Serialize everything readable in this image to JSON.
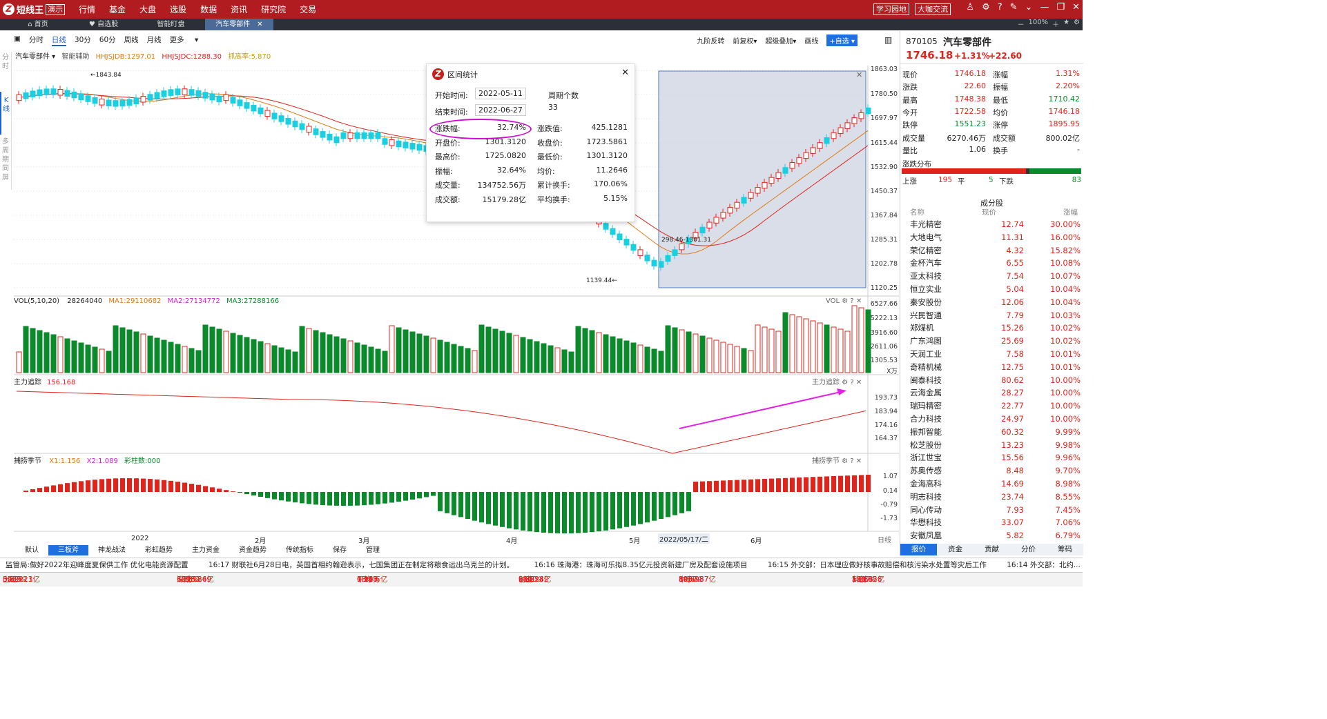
{
  "app": {
    "name": "短线王",
    "badge": "演示",
    "menu": [
      "行情",
      "基金",
      "大盘",
      "选股",
      "数据",
      "资讯",
      "研究院",
      "交易"
    ],
    "btn_learn": "学习园地",
    "btn_chat": "大咖交流",
    "zoom": "100%"
  },
  "tabs": [
    "首页",
    "自选股",
    "智能盯盘",
    "汽车零部件"
  ],
  "chart": {
    "sidebar": [
      "分时",
      "K线",
      "多周期同屏"
    ],
    "periods": [
      "分时",
      "日线",
      "30分",
      "60分",
      "周线",
      "月线",
      "更多"
    ],
    "tools": [
      "九阶反转",
      "前复权",
      "超级叠加",
      "画线",
      "+自选"
    ],
    "name": "汽车零部件",
    "assist": "智能辅助",
    "l1": "HHJSJDB:1297.01",
    "l2": "HHJSJDC:1288.30",
    "l3": "抓高率:5.870",
    "yticks": [
      "1863.03",
      "1780.50",
      "1697.97",
      "1615.44",
      "1532.90",
      "1450.37",
      "1367.84",
      "1285.31",
      "1202.78",
      "1120.25"
    ],
    "hi_label": "1843.84",
    "lo_label": "1139.44",
    "range_label": "298.46-1301.31",
    "vol": {
      "hdr": "VOL(5,10,20)",
      "val": "28264040",
      "ma1": "MA1:29110682",
      "ma2": "MA2:27134772",
      "ma3": "MA3:27288166",
      "tag": "VOL",
      "yticks": [
        "6527.66",
        "5222.13",
        "3916.60",
        "2611.06",
        "1305.53"
      ],
      "unit": "X万"
    },
    "zlzz": {
      "hdr": "主力追踪",
      "val": "156.168",
      "tag": "主力追踪",
      "yticks": [
        "193.73",
        "183.94",
        "174.16",
        "164.37"
      ]
    },
    "bljj": {
      "hdr": "捕捞季节",
      "x1": "X1:1.156",
      "x2": "X2:1.089",
      "cz": "彩柱数:000",
      "tag": "捕捞季节",
      "yticks": [
        "1.07",
        "0.14",
        "-0.79",
        "-1.73"
      ]
    },
    "xaxis": [
      "2022",
      "2月",
      "3月",
      "4月",
      "5月",
      "2022/05/17/二",
      "6月",
      "日线"
    ],
    "bottom": [
      "默认",
      "三板斧",
      "神龙战法",
      "彩虹趋势",
      "主力资金",
      "资金趋势",
      "传统指标",
      "保存",
      "管理"
    ]
  },
  "popup": {
    "title": "区间统计",
    "start_label": "开始时间:",
    "start": "2022-05-11",
    "end_label": "结束时间:",
    "end": "2022-06-27",
    "cnt_label": "周期个数",
    "cnt": "33",
    "rows": [
      [
        "涨跌幅:",
        "32.74%",
        "涨跌值:",
        "425.1281"
      ],
      [
        "开盘价:",
        "1301.3120",
        "收盘价:",
        "1723.5861"
      ],
      [
        "最高价:",
        "1725.0820",
        "最低价:",
        "1301.3120"
      ],
      [
        "振幅:",
        "32.64%",
        "均价:",
        "11.2646"
      ],
      [
        "成交量:",
        "134752.56万",
        "累计换手:",
        "170.06%"
      ],
      [
        "成交额:",
        "15179.28亿",
        "平均换手:",
        "5.15%"
      ]
    ]
  },
  "quote": {
    "code": "870105",
    "name": "汽车零部件",
    "price": "1746.18",
    "pct": "+1.31%",
    "chg": "+22.60",
    "rows": [
      [
        "现价",
        "1746.18",
        "涨幅",
        "1.31%"
      ],
      [
        "涨跌",
        "22.60",
        "振幅",
        "2.20%"
      ],
      [
        "最高",
        "1748.38",
        "最低",
        "1710.42"
      ],
      [
        "今开",
        "1722.58",
        "均价",
        "1746.18"
      ],
      [
        "跌停",
        "1551.23",
        "涨停",
        "1895.95"
      ],
      [
        "成交量",
        "6270.46万",
        "成交额",
        "800.02亿"
      ],
      [
        "量比",
        "1.06",
        "换手",
        "-"
      ]
    ],
    "dist_title": "涨跌分布",
    "up_label": "上涨",
    "up": "195",
    "flat_label": "平",
    "flat": "5",
    "down_label": "下跌",
    "down": "83",
    "cf_title": "成分股",
    "cols": [
      "名称",
      "现价",
      "涨幅"
    ],
    "stocks": [
      [
        "丰光精密",
        "12.74",
        "30.00%"
      ],
      [
        "大地电气",
        "11.31",
        "16.00%"
      ],
      [
        "荣亿精密",
        "4.32",
        "15.82%"
      ],
      [
        "金杯汽车",
        "6.55",
        "10.08%"
      ],
      [
        "亚太科技",
        "7.54",
        "10.07%"
      ],
      [
        "恒立实业",
        "5.04",
        "10.04%"
      ],
      [
        "秦安股份",
        "12.06",
        "10.04%"
      ],
      [
        "兴民智通",
        "7.79",
        "10.03%"
      ],
      [
        "郑煤机",
        "15.26",
        "10.02%"
      ],
      [
        "广东鸿图",
        "25.69",
        "10.02%"
      ],
      [
        "天润工业",
        "7.58",
        "10.01%"
      ],
      [
        "奇精机械",
        "12.75",
        "10.01%"
      ],
      [
        "闽泰科技",
        "80.62",
        "10.00%"
      ],
      [
        "云海金属",
        "28.27",
        "10.00%"
      ],
      [
        "瑞玛精密",
        "22.77",
        "10.00%"
      ],
      [
        "合力科技",
        "24.97",
        "10.00%"
      ],
      [
        "振邦智能",
        "60.32",
        "9.99%"
      ],
      [
        "松芝股份",
        "13.23",
        "9.98%"
      ],
      [
        "浙江世宝",
        "15.56",
        "9.96%"
      ],
      [
        "苏奥传感",
        "8.48",
        "9.70%"
      ],
      [
        "金海高科",
        "14.69",
        "8.98%"
      ],
      [
        "明志科技",
        "23.74",
        "8.55%"
      ],
      [
        "同心传动",
        "7.93",
        "7.45%"
      ],
      [
        "华懋科技",
        "33.07",
        "7.06%"
      ],
      [
        "安徽凤凰",
        "5.82",
        "6.79%"
      ]
    ],
    "tabs": [
      "报价",
      "资金",
      "贡献",
      "分价",
      "筹码"
    ]
  },
  "news": {
    "label": "监管局:",
    "text": "做好2022年迎峰度夏保供工作 优化电能资源配置",
    "n2": "16:17 财联社6月28日电，英国首相约翰逊表示，七国集团正在制定将粮食运出乌克兰的计划。",
    "n3": "16:16 珠海港：珠海可乐拟8.35亿元投资新建厂房及配套设施项目",
    "n4": "16:15 外交部：日本理应做好核事故赔偿和核污染水处置等灾后工作",
    "n5": "16:14 外交部：北约..."
  },
  "indexes": [
    [
      "上证",
      "3409.21",
      "30.02",
      "0.89%",
      "5255.13亿"
    ],
    [
      "深成",
      "12982.69",
      "157.12",
      "1.23%",
      "6956.84亿"
    ],
    [
      "平均",
      "18.48",
      "0.16",
      "0.90%",
      "1.22万亿"
    ],
    [
      "创业",
      "2840.42",
      "9.82",
      "0.35%",
      "812.28亿"
    ],
    [
      "中小",
      "8930.87",
      "145.95",
      "1.66%",
      "1067.37亿"
    ],
    [
      "科创",
      "1117.28",
      "13.89",
      "1.26%",
      "590.65亿"
    ]
  ],
  "colors": {
    "up": "#e0241c",
    "down_k": "#19cfe0",
    "down_bar": "#0a8a2a",
    "brand": "#b01c20",
    "accent": "#1f6fe0",
    "arrow": "#e520e5",
    "popup_ring": "#cc10cc"
  }
}
